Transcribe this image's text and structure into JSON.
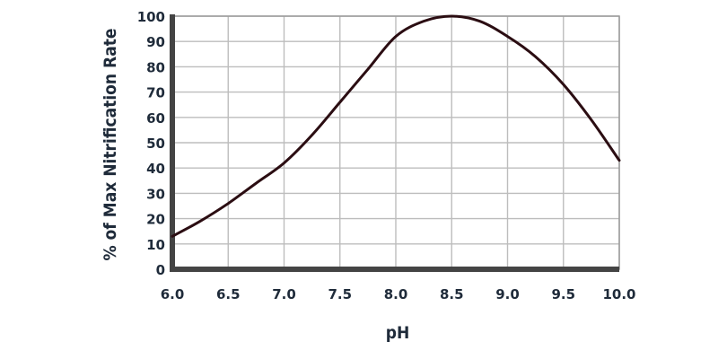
{
  "chart_data": {
    "type": "line",
    "xlabel": "pH",
    "ylabel": "% of Max Nitrification Rate",
    "xlim": [
      6.0,
      10.0
    ],
    "ylim": [
      0,
      100
    ],
    "xticks": [
      "6.0",
      "6.5",
      "7.0",
      "7.5",
      "8.0",
      "8.5",
      "9.0",
      "9.5",
      "10.0"
    ],
    "yticks": [
      "0",
      "10",
      "20",
      "30",
      "40",
      "50",
      "60",
      "70",
      "80",
      "90",
      "100"
    ],
    "grid": true,
    "line_color": "#2b0d12",
    "series": [
      {
        "x": [
          6.0,
          6.25,
          6.5,
          6.75,
          7.0,
          7.25,
          7.5,
          7.75,
          8.0,
          8.25,
          8.5,
          8.75,
          9.0,
          9.25,
          9.5,
          9.75,
          10.0
        ],
        "values": [
          13,
          19,
          26,
          34,
          42,
          53,
          66,
          79,
          92,
          98,
          100,
          98,
          92,
          84,
          73,
          59,
          43
        ]
      }
    ]
  }
}
